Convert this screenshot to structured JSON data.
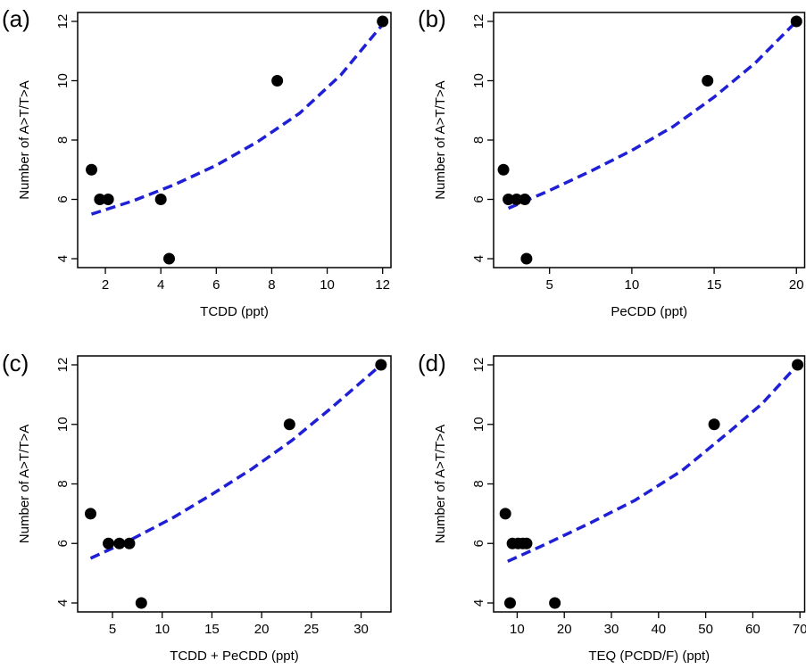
{
  "chart_data": [
    {
      "type": "scatter",
      "panel_label": "(a)",
      "xlabel": "TCDD (ppt)",
      "ylabel": "Number of A>T/T>A",
      "xlim": [
        1,
        12.3
      ],
      "ylim": [
        3.7,
        12.3
      ],
      "xticks": [
        2,
        4,
        6,
        8,
        10,
        12
      ],
      "yticks": [
        4,
        6,
        8,
        10,
        12
      ],
      "points": [
        [
          1.5,
          7
        ],
        [
          1.8,
          6
        ],
        [
          2.1,
          6
        ],
        [
          4.0,
          6
        ],
        [
          4.3,
          4
        ],
        [
          8.2,
          10
        ],
        [
          12.0,
          12
        ]
      ],
      "fit_line": {
        "style": "dashed",
        "color": "#1f1fd6",
        "x": [
          1.5,
          3.0,
          4.5,
          6.0,
          7.5,
          9.0,
          10.5,
          12.0
        ],
        "y": [
          5.5,
          5.95,
          6.5,
          7.15,
          7.95,
          8.9,
          10.2,
          11.9
        ]
      }
    },
    {
      "type": "scatter",
      "panel_label": "(b)",
      "xlabel": "PeCDD (ppt)",
      "ylabel": "Number of A>T/T>A",
      "xlim": [
        1.6,
        20.5
      ],
      "ylim": [
        3.7,
        12.3
      ],
      "xticks": [
        5,
        10,
        15,
        20
      ],
      "yticks": [
        4,
        6,
        8,
        10,
        12
      ],
      "points": [
        [
          2.2,
          7
        ],
        [
          2.5,
          6
        ],
        [
          3.0,
          6
        ],
        [
          3.5,
          6
        ],
        [
          3.6,
          4
        ],
        [
          14.6,
          10
        ],
        [
          20.0,
          12
        ]
      ],
      "fit_line": {
        "style": "dashed",
        "color": "#1f1fd6",
        "x": [
          2.5,
          5,
          7.5,
          10,
          12.5,
          15,
          17.5,
          20
        ],
        "y": [
          5.7,
          6.3,
          6.95,
          7.65,
          8.45,
          9.45,
          10.6,
          12.0
        ]
      }
    },
    {
      "type": "scatter",
      "panel_label": "(c)",
      "xlabel": "TCDD + PeCDD (ppt)",
      "ylabel": "Number of A>T/T>A",
      "xlim": [
        1.5,
        33
      ],
      "ylim": [
        3.7,
        12.3
      ],
      "xticks": [
        5,
        10,
        15,
        20,
        25,
        30
      ],
      "yticks": [
        4,
        6,
        8,
        10,
        12
      ],
      "points": [
        [
          2.8,
          7
        ],
        [
          4.6,
          6
        ],
        [
          5.7,
          6
        ],
        [
          6.7,
          6
        ],
        [
          7.9,
          4
        ],
        [
          22.8,
          10
        ],
        [
          32.0,
          12
        ]
      ],
      "fit_line": {
        "style": "dashed",
        "color": "#1f1fd6",
        "x": [
          2.8,
          7,
          11,
          15,
          19,
          23,
          27,
          32
        ],
        "y": [
          5.5,
          6.15,
          6.85,
          7.65,
          8.5,
          9.45,
          10.55,
          12.0
        ]
      }
    },
    {
      "type": "scatter",
      "panel_label": "(d)",
      "xlabel": "TEQ (PCDD/F) (ppt)",
      "ylabel": "Number of A>T/T>A",
      "xlim": [
        5,
        71
      ],
      "ylim": [
        3.7,
        12.3
      ],
      "xticks": [
        10,
        20,
        30,
        40,
        50,
        60,
        70
      ],
      "yticks": [
        4,
        6,
        8,
        10,
        12
      ],
      "points": [
        [
          7.5,
          7
        ],
        [
          8.5,
          4
        ],
        [
          9.0,
          6
        ],
        [
          10.2,
          6
        ],
        [
          11.2,
          6
        ],
        [
          12.0,
          6
        ],
        [
          18.0,
          4
        ],
        [
          51.8,
          10
        ],
        [
          69.5,
          12
        ]
      ],
      "fit_line": {
        "style": "dashed",
        "color": "#1f1fd6",
        "x": [
          8,
          15,
          25,
          35,
          45,
          55,
          62,
          69.5
        ],
        "y": [
          5.4,
          5.9,
          6.65,
          7.45,
          8.45,
          9.75,
          10.7,
          12.0
        ]
      }
    }
  ]
}
